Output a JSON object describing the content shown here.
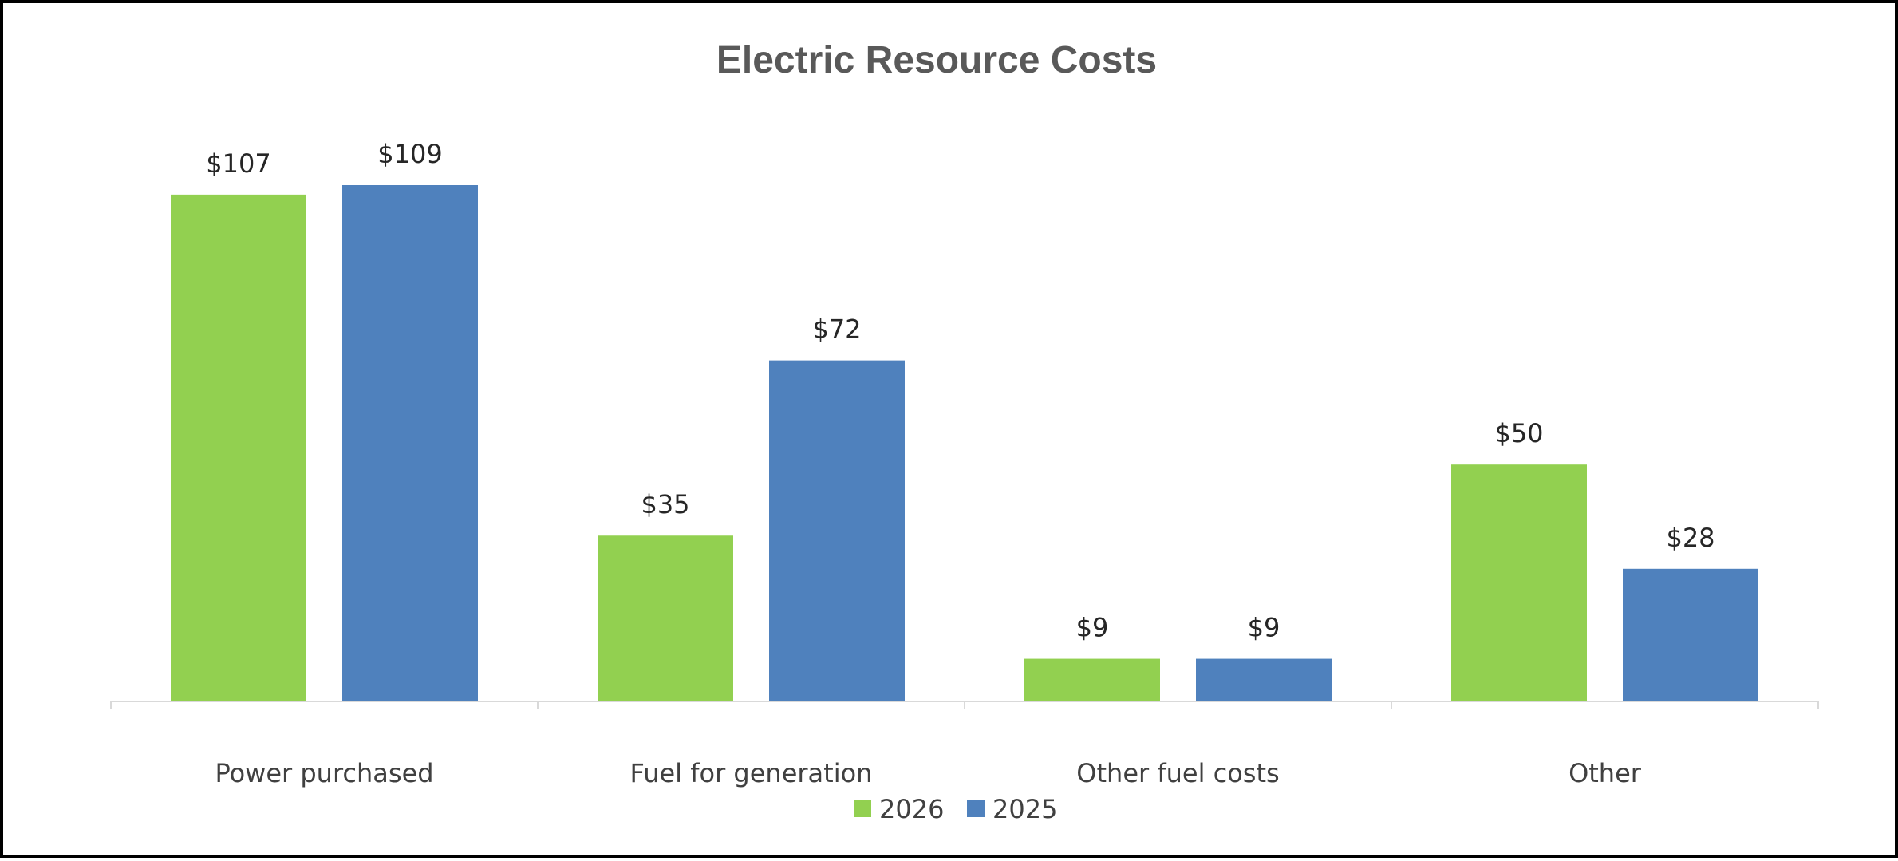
{
  "chart_data": {
    "type": "bar",
    "title": "Electric Resource Costs",
    "xlabel": "",
    "ylabel": "",
    "categories": [
      "Power purchased",
      "Fuel for generation",
      "Other fuel costs",
      "Other"
    ],
    "series": [
      {
        "name": "2026",
        "color": "#92d050",
        "values": [
          107,
          35,
          9,
          50
        ],
        "labels": [
          "$107",
          "$35",
          "$9",
          "$50"
        ]
      },
      {
        "name": "2025",
        "color": "#4f81bd",
        "values": [
          109,
          72,
          9,
          28
        ],
        "labels": [
          "$109",
          "$72",
          "$9",
          "$28"
        ]
      }
    ],
    "ylim": [
      0,
      120
    ],
    "grid": false,
    "legend": "bottom",
    "axis_color": "#d9d9d9"
  }
}
